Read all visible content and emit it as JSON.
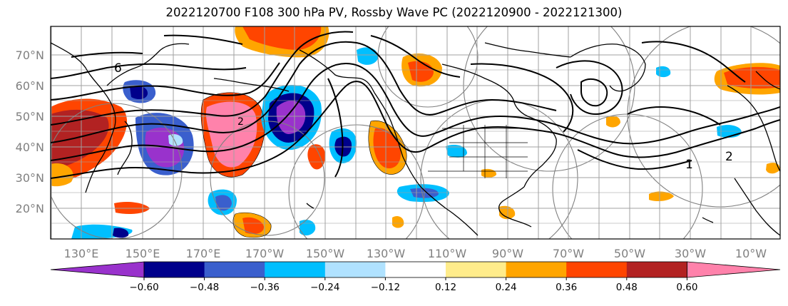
{
  "title": "2022120700 F108 300 hPa PV, Rossby Wave PC (2022120900 - 2022121300)",
  "map": {
    "lat_labels": [
      "70°N",
      "60°N",
      "50°N",
      "40°N",
      "30°N",
      "20°N"
    ],
    "lon_labels": [
      "130°E",
      "150°E",
      "170°E",
      "170°W",
      "150°W",
      "130°W",
      "110°W",
      "90°W",
      "70°W",
      "50°W",
      "30°W",
      "10°W"
    ],
    "contour_labels": [
      "6",
      "2",
      "2",
      "1"
    ]
  },
  "colorbar": {
    "colors": [
      "#9932cc",
      "#00008b",
      "#3a5fcd",
      "#00bfff",
      "#b0e2ff",
      "#ffffff",
      "#ffec8b",
      "#ffa500",
      "#ff4500",
      "#b22222",
      "#ff82ab"
    ],
    "tick_labels": [
      "−0.60",
      "−0.48",
      "−0.36",
      "−0.24",
      "−0.12",
      "0.12",
      "0.24",
      "0.36",
      "0.48",
      "0.60"
    ]
  },
  "colors": {
    "grid": "#a0a0a0",
    "contour": "#000000",
    "coast": "#000000",
    "circle": "#808080"
  }
}
